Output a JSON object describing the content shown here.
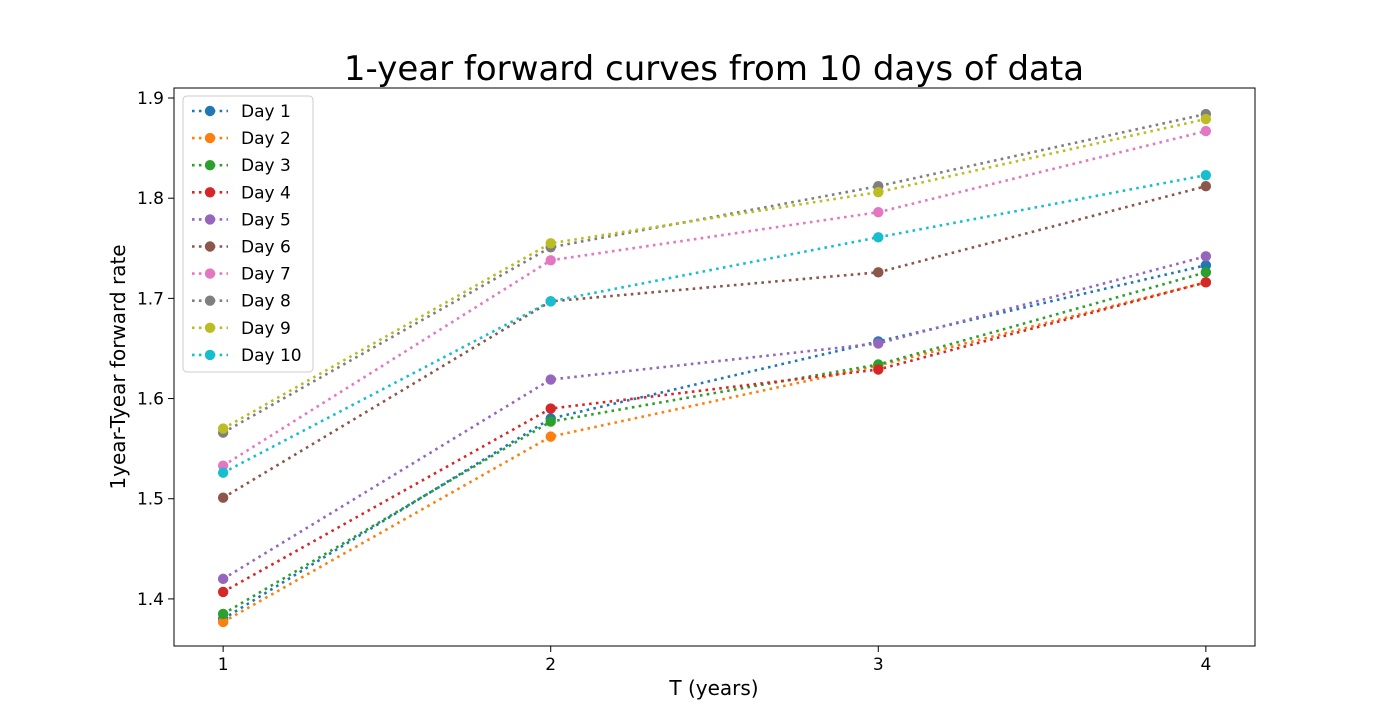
{
  "chart_data": {
    "type": "line",
    "title": "1-year forward curves from 10 days of data",
    "xlabel": "T (years)",
    "ylabel": "1year-Tyear forward rate",
    "x": [
      1,
      2,
      3,
      4
    ],
    "xticks": [
      "1",
      "2",
      "3",
      "4"
    ],
    "yticks": [
      "1.4",
      "1.5",
      "1.6",
      "1.7",
      "1.8",
      "1.9"
    ],
    "xlim": [
      0.85,
      4.15
    ],
    "ylim": [
      1.353,
      1.91
    ],
    "grid": false,
    "legend_position": "upper-left",
    "line_style": "dotted",
    "marker": "circle",
    "series": [
      {
        "name": "Day 1",
        "color": "#1f77b4",
        "values": [
          1.38,
          1.58,
          1.657,
          1.733
        ]
      },
      {
        "name": "Day 2",
        "color": "#ff7f0e",
        "values": [
          1.377,
          1.562,
          1.633,
          1.716
        ]
      },
      {
        "name": "Day 3",
        "color": "#2ca02c",
        "values": [
          1.385,
          1.577,
          1.634,
          1.726
        ]
      },
      {
        "name": "Day 4",
        "color": "#d62728",
        "values": [
          1.407,
          1.59,
          1.629,
          1.716
        ]
      },
      {
        "name": "Day 5",
        "color": "#9467bd",
        "values": [
          1.42,
          1.619,
          1.655,
          1.742
        ]
      },
      {
        "name": "Day 6",
        "color": "#8c564b",
        "values": [
          1.501,
          1.697,
          1.726,
          1.812
        ]
      },
      {
        "name": "Day 7",
        "color": "#e377c2",
        "values": [
          1.533,
          1.738,
          1.786,
          1.867
        ]
      },
      {
        "name": "Day 8",
        "color": "#7f7f7f",
        "values": [
          1.566,
          1.751,
          1.812,
          1.884
        ]
      },
      {
        "name": "Day 9",
        "color": "#bcbd22",
        "values": [
          1.57,
          1.755,
          1.806,
          1.879
        ]
      },
      {
        "name": "Day 10",
        "color": "#17becf",
        "values": [
          1.526,
          1.697,
          1.761,
          1.823
        ]
      }
    ]
  }
}
